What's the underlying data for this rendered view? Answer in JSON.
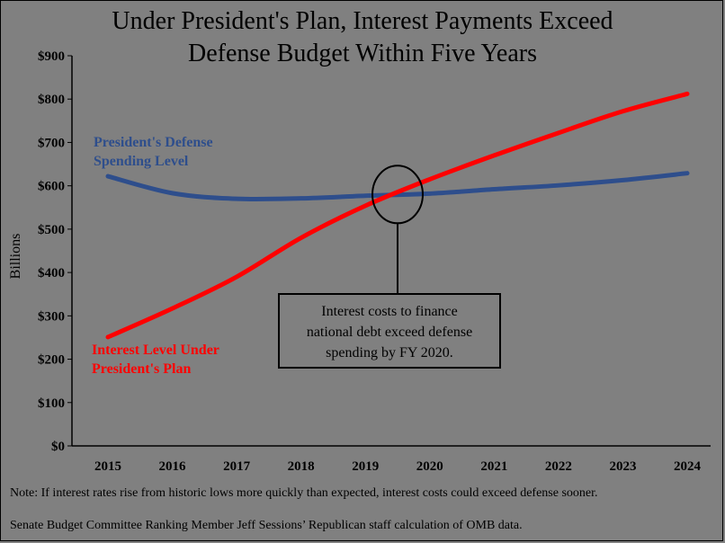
{
  "chart_data": {
    "type": "line",
    "title": [
      "Under President's Plan, Interest Payments Exceed",
      "Defense Budget Within Five Years"
    ],
    "ylabel": "Billions",
    "xlabel": "",
    "categories": [
      "2015",
      "2016",
      "2017",
      "2018",
      "2019",
      "2020",
      "2021",
      "2022",
      "2023",
      "2024"
    ],
    "ylim": [
      0,
      900
    ],
    "yticks": [
      0,
      100,
      200,
      300,
      400,
      500,
      600,
      700,
      800,
      900
    ],
    "ytick_labels": [
      "$0",
      "$100",
      "$200",
      "$300",
      "$400",
      "$500",
      "$600",
      "$700",
      "$800",
      "$900"
    ],
    "grid": false,
    "series": [
      {
        "name": "President's Defense Spending Level",
        "label_lines": [
          "President's Defense",
          "Spending Level"
        ],
        "color": "#2e4e8c",
        "values": [
          622,
          583,
          570,
          571,
          577,
          582,
          592,
          601,
          613,
          629
        ]
      },
      {
        "name": "Interest Level Under President's Plan",
        "label_lines": [
          "Interest Level Under",
          "President's Plan"
        ],
        "color": "#ff0000",
        "values": [
          251,
          317,
          390,
          480,
          554,
          615,
          670,
          722,
          772,
          812
        ]
      }
    ],
    "annotation": {
      "lines": [
        "Interest costs to finance",
        "national debt exceed defense",
        "spending by FY 2020."
      ],
      "x": 4.5,
      "y": 580
    }
  },
  "notes": {
    "note1": "Note: If interest rates rise from historic lows more quickly than expected, interest costs could exceed defense sooner.",
    "source": "Senate Budget Committee Ranking Member Jeff Sessions’ Republican staff calculation of OMB data."
  }
}
